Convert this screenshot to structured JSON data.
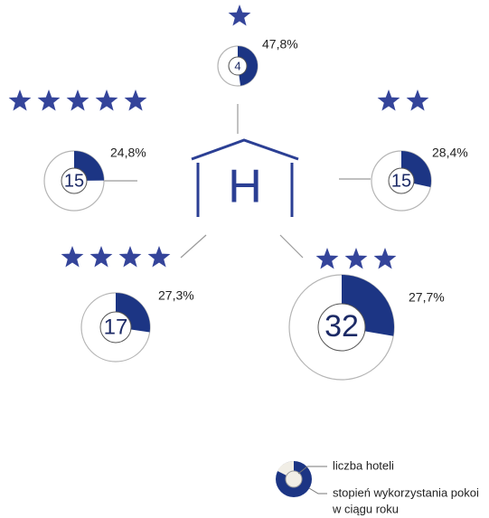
{
  "center": "H",
  "groups": [
    {
      "stars": 1,
      "hotels": 4,
      "value": 47.8,
      "value_label": "47,8%"
    },
    {
      "stars": 5,
      "hotels": 15,
      "value": 24.8,
      "value_label": "24,8%"
    },
    {
      "stars": 2,
      "hotels": 15,
      "value": 28.4,
      "value_label": "28,4%"
    },
    {
      "stars": 4,
      "hotels": 17,
      "value": 27.3,
      "value_label": "27,3%"
    },
    {
      "stars": 3,
      "hotels": 32,
      "value": 27.7,
      "value_label": "27,7%"
    }
  ],
  "legend": {
    "count": "liczba hoteli",
    "usage": [
      "stopień wykorzystania pokoi",
      "w ciągu roku"
    ]
  }
}
